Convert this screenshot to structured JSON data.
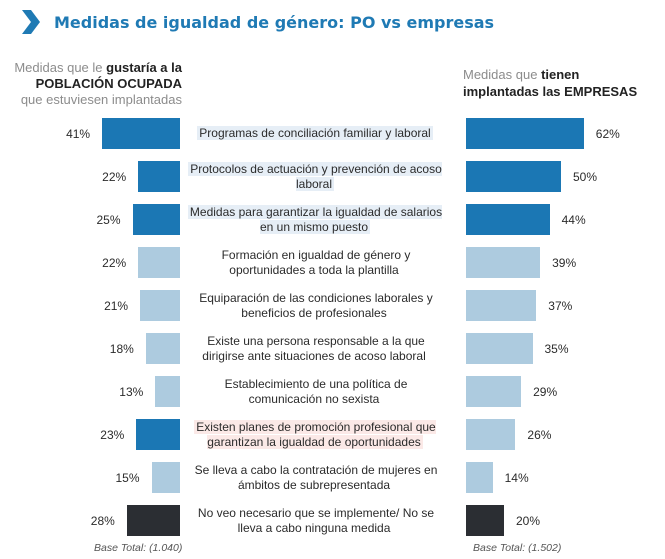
{
  "header": {
    "title": "Medidas de igualdad de género: PO vs empresas",
    "icon": "chevron-right-icon",
    "accent_color": "#1f7ab4"
  },
  "left_header": {
    "part1": "Medidas que le ",
    "part2": "gustaría a la",
    "part3": "POBLACIÓN OCUPADA",
    "part4": "que estuviesen implantadas"
  },
  "right_header": {
    "part1": "Medidas que ",
    "part2": "tienen",
    "part3": "implantadas las EMPRESAS"
  },
  "base_left": "Base Total: (1.040)",
  "base_right": "Base Total: (1.502)",
  "chart_data": {
    "type": "bar",
    "title": "Medidas de igualdad de género: PO vs empresas",
    "orientation": "horizontal-butterfly",
    "categories": [
      "Programas de conciliación familiar y laboral",
      "Protocolos de actuación y prevención de acoso laboral",
      "Medidas para garantizar la igualdad de salarios en un mismo puesto",
      "Formación en igualdad de género y oportunidades a toda la plantilla",
      "Equiparación de las condiciones laborales y beneficios de profesionales",
      "Existe una persona responsable a la que dirigirse ante situaciones de acoso laboral",
      "Establecimiento de una política de comunicación no sexista",
      "Existen planes de promoción profesional que garantizan la igualdad de oportunidades",
      "Se lleva a cabo la contratación de mujeres en ámbitos de subrepresentada",
      "No veo necesario que se implemente/ No se lleva a cabo ninguna medida"
    ],
    "series": [
      {
        "name": "Medidas que le gustaría a la POBLACIÓN OCUPADA que estuviesen implantadas",
        "values": [
          41,
          22,
          25,
          22,
          21,
          18,
          13,
          23,
          15,
          28
        ],
        "labels": [
          "41%",
          "22%",
          "25%",
          "22%",
          "21%",
          "18%",
          "13%",
          "23%",
          "15%",
          "28%"
        ],
        "base": "Base Total: (1.040)"
      },
      {
        "name": "Medidas que tienen implantadas las EMPRESAS",
        "values": [
          62,
          50,
          44,
          39,
          37,
          35,
          29,
          26,
          14,
          20
        ],
        "labels": [
          "62%",
          "50%",
          "44%",
          "39%",
          "37%",
          "35%",
          "29%",
          "26%",
          "14%",
          "20%"
        ],
        "base": "Base Total: (1.502)"
      }
    ],
    "bar_styles": [
      "dark-blue",
      "dark-blue",
      "dark-blue",
      "light-blue",
      "light-blue",
      "light-blue",
      "light-blue",
      "mixed",
      "light-blue",
      "black"
    ],
    "left_styles": [
      "dark-blue",
      "dark-blue",
      "dark-blue",
      "light-blue",
      "light-blue",
      "light-blue",
      "light-blue",
      "dark-blue",
      "light-blue",
      "black"
    ],
    "right_styles": [
      "dark-blue",
      "dark-blue",
      "dark-blue",
      "light-blue",
      "light-blue",
      "light-blue",
      "light-blue",
      "light-blue",
      "light-blue",
      "black"
    ],
    "label_highlights": [
      "blue",
      "blue",
      "blue",
      "none",
      "none",
      "none",
      "none",
      "pink",
      "none",
      "none"
    ],
    "colors": {
      "dark-blue": "#1b77b4",
      "light-blue": "#adcbdf",
      "black": "#2b2e33"
    },
    "xlim": [
      0,
      100
    ],
    "unit": "%"
  }
}
